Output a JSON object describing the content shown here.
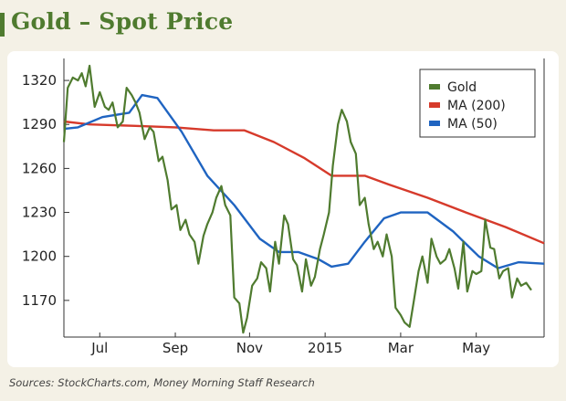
{
  "page": {
    "title": "Gold – Spot Price",
    "source": "Sources: StockCharts.com, Money Morning Staff Research"
  },
  "colors": {
    "gold": "#4f7b2f",
    "ma200": "#d63a2b",
    "ma50": "#1f64c1",
    "background": "#f4f1e6",
    "title": "#4f7b2f"
  },
  "chart_data": {
    "type": "line",
    "title": "Gold – Spot Price",
    "xlabel": "",
    "ylabel": "",
    "x_ticks": [
      "Jul",
      "Sep",
      "Nov",
      "2015",
      "Mar",
      "May"
    ],
    "y_ticks": [
      1170,
      1200,
      1230,
      1260,
      1290,
      1320
    ],
    "ylim": [
      1145,
      1335
    ],
    "xlim": [
      "2014-06-20",
      "2015-06-30"
    ],
    "legend_position": "top-right",
    "grid": false,
    "series": [
      {
        "name": "Gold",
        "color": "#4f7b2f",
        "points": [
          [
            "2014-06-20",
            1278
          ],
          [
            "2014-06-23",
            1315
          ],
          [
            "2014-06-27",
            1322
          ],
          [
            "2014-07-01",
            1320
          ],
          [
            "2014-07-04",
            1325
          ],
          [
            "2014-07-07",
            1316
          ],
          [
            "2014-07-10",
            1330
          ],
          [
            "2014-07-14",
            1302
          ],
          [
            "2014-07-18",
            1312
          ],
          [
            "2014-07-22",
            1302
          ],
          [
            "2014-07-25",
            1300
          ],
          [
            "2014-07-28",
            1305
          ],
          [
            "2014-08-01",
            1288
          ],
          [
            "2014-08-05",
            1292
          ],
          [
            "2014-08-08",
            1315
          ],
          [
            "2014-08-12",
            1310
          ],
          [
            "2014-08-15",
            1305
          ],
          [
            "2014-08-18",
            1298
          ],
          [
            "2014-08-22",
            1280
          ],
          [
            "2014-08-26",
            1288
          ],
          [
            "2014-08-29",
            1285
          ],
          [
            "2014-09-02",
            1265
          ],
          [
            "2014-09-05",
            1268
          ],
          [
            "2014-09-09",
            1252
          ],
          [
            "2014-09-12",
            1232
          ],
          [
            "2014-09-16",
            1235
          ],
          [
            "2014-09-19",
            1218
          ],
          [
            "2014-09-23",
            1225
          ],
          [
            "2014-09-26",
            1215
          ],
          [
            "2014-09-30",
            1210
          ],
          [
            "2014-10-03",
            1195
          ],
          [
            "2014-10-07",
            1214
          ],
          [
            "2014-10-10",
            1222
          ],
          [
            "2014-10-14",
            1230
          ],
          [
            "2014-10-17",
            1240
          ],
          [
            "2014-10-21",
            1248
          ],
          [
            "2014-10-24",
            1235
          ],
          [
            "2014-10-28",
            1228
          ],
          [
            "2014-10-31",
            1172
          ],
          [
            "2014-11-04",
            1168
          ],
          [
            "2014-11-07",
            1148
          ],
          [
            "2014-11-10",
            1158
          ],
          [
            "2014-11-14",
            1180
          ],
          [
            "2014-11-18",
            1185
          ],
          [
            "2014-11-21",
            1196
          ],
          [
            "2014-11-25",
            1192
          ],
          [
            "2014-11-28",
            1176
          ],
          [
            "2014-12-02",
            1210
          ],
          [
            "2014-12-05",
            1195
          ],
          [
            "2014-12-09",
            1228
          ],
          [
            "2014-12-12",
            1222
          ],
          [
            "2014-12-16",
            1198
          ],
          [
            "2014-12-19",
            1194
          ],
          [
            "2014-12-23",
            1176
          ],
          [
            "2014-12-26",
            1198
          ],
          [
            "2014-12-30",
            1180
          ],
          [
            "2015-01-02",
            1186
          ],
          [
            "2015-01-06",
            1205
          ],
          [
            "2015-01-09",
            1215
          ],
          [
            "2015-01-13",
            1230
          ],
          [
            "2015-01-16",
            1262
          ],
          [
            "2015-01-20",
            1290
          ],
          [
            "2015-01-23",
            1300
          ],
          [
            "2015-01-27",
            1292
          ],
          [
            "2015-01-30",
            1278
          ],
          [
            "2015-02-03",
            1270
          ],
          [
            "2015-02-06",
            1235
          ],
          [
            "2015-02-10",
            1240
          ],
          [
            "2015-02-13",
            1222
          ],
          [
            "2015-02-17",
            1205
          ],
          [
            "2015-02-20",
            1210
          ],
          [
            "2015-02-24",
            1200
          ],
          [
            "2015-02-27",
            1215
          ],
          [
            "2015-03-03",
            1200
          ],
          [
            "2015-03-06",
            1165
          ],
          [
            "2015-03-10",
            1160
          ],
          [
            "2015-03-13",
            1155
          ],
          [
            "2015-03-17",
            1152
          ],
          [
            "2015-03-20",
            1168
          ],
          [
            "2015-03-24",
            1190
          ],
          [
            "2015-03-27",
            1200
          ],
          [
            "2015-03-31",
            1182
          ],
          [
            "2015-04-03",
            1212
          ],
          [
            "2015-04-07",
            1200
          ],
          [
            "2015-04-10",
            1195
          ],
          [
            "2015-04-14",
            1198
          ],
          [
            "2015-04-17",
            1205
          ],
          [
            "2015-04-21",
            1192
          ],
          [
            "2015-04-24",
            1178
          ],
          [
            "2015-04-28",
            1210
          ],
          [
            "2015-05-01",
            1176
          ],
          [
            "2015-05-05",
            1190
          ],
          [
            "2015-05-08",
            1188
          ],
          [
            "2015-05-12",
            1190
          ],
          [
            "2015-05-15",
            1225
          ],
          [
            "2015-05-19",
            1206
          ],
          [
            "2015-05-22",
            1205
          ],
          [
            "2015-05-26",
            1185
          ],
          [
            "2015-05-29",
            1190
          ],
          [
            "2015-06-02",
            1192
          ],
          [
            "2015-06-05",
            1172
          ],
          [
            "2015-06-09",
            1185
          ],
          [
            "2015-06-12",
            1180
          ],
          [
            "2015-06-16",
            1182
          ],
          [
            "2015-06-20",
            1177
          ]
        ]
      },
      {
        "name": "MA (200)",
        "color": "#d63a2b",
        "points": [
          [
            "2014-06-20",
            1292
          ],
          [
            "2014-07-10",
            1290
          ],
          [
            "2014-08-15",
            1289
          ],
          [
            "2014-09-15",
            1288
          ],
          [
            "2014-10-15",
            1286
          ],
          [
            "2014-11-08",
            1286
          ],
          [
            "2014-12-01",
            1278
          ],
          [
            "2014-12-25",
            1267
          ],
          [
            "2015-01-15",
            1255
          ],
          [
            "2015-02-10",
            1255
          ],
          [
            "2015-03-01",
            1249
          ],
          [
            "2015-03-31",
            1240
          ],
          [
            "2015-04-30",
            1230
          ],
          [
            "2015-05-31",
            1220
          ],
          [
            "2015-06-30",
            1209
          ]
        ]
      },
      {
        "name": "MA (50)",
        "color": "#1f64c1",
        "points": [
          [
            "2014-06-20",
            1287
          ],
          [
            "2014-07-01",
            1288
          ],
          [
            "2014-07-20",
            1295
          ],
          [
            "2014-08-10",
            1298
          ],
          [
            "2014-08-20",
            1310
          ],
          [
            "2014-09-01",
            1308
          ],
          [
            "2014-09-20",
            1285
          ],
          [
            "2014-10-10",
            1255
          ],
          [
            "2014-10-31",
            1235
          ],
          [
            "2014-11-20",
            1212
          ],
          [
            "2014-12-05",
            1203
          ],
          [
            "2014-12-20",
            1203
          ],
          [
            "2015-01-05",
            1198
          ],
          [
            "2015-01-15",
            1193
          ],
          [
            "2015-01-28",
            1195
          ],
          [
            "2015-02-10",
            1210
          ],
          [
            "2015-02-25",
            1226
          ],
          [
            "2015-03-10",
            1230
          ],
          [
            "2015-03-31",
            1230
          ],
          [
            "2015-04-20",
            1217
          ],
          [
            "2015-05-10",
            1200
          ],
          [
            "2015-05-25",
            1192
          ],
          [
            "2015-06-10",
            1196
          ],
          [
            "2015-06-30",
            1195
          ]
        ]
      }
    ]
  }
}
